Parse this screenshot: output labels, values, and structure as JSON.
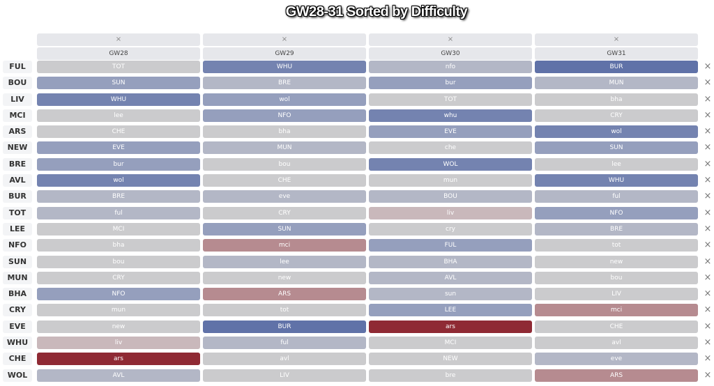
{
  "title": "GW28-31 Sorted by Difficulty",
  "header": {
    "remove_label": "×",
    "columns": [
      "GW28",
      "GW29",
      "GW30",
      "GW31"
    ]
  },
  "row_remove_label": "×",
  "colors": {
    "c0": "#cbcbcd",
    "c1": "#b3b7c6",
    "c2": "#959fbd",
    "c3": "#7483b0",
    "c4": "#6072a8",
    "p1": "#c9b8bb",
    "p2": "#b68b90",
    "p3": "#8f2a34"
  },
  "rows": [
    {
      "team": "FUL",
      "fixtures": [
        {
          "opp": "TOT",
          "c": "c0"
        },
        {
          "opp": "WHU",
          "c": "c3"
        },
        {
          "opp": "nfo",
          "c": "c1"
        },
        {
          "opp": "BUR",
          "c": "c4"
        }
      ]
    },
    {
      "team": "BOU",
      "fixtures": [
        {
          "opp": "SUN",
          "c": "c2"
        },
        {
          "opp": "BRE",
          "c": "c1"
        },
        {
          "opp": "bur",
          "c": "c2"
        },
        {
          "opp": "MUN",
          "c": "c1"
        }
      ]
    },
    {
      "team": "LIV",
      "fixtures": [
        {
          "opp": "WHU",
          "c": "c3"
        },
        {
          "opp": "wol",
          "c": "c2"
        },
        {
          "opp": "TOT",
          "c": "c0"
        },
        {
          "opp": "bha",
          "c": "c0"
        }
      ]
    },
    {
      "team": "MCI",
      "fixtures": [
        {
          "opp": "lee",
          "c": "c0"
        },
        {
          "opp": "NFO",
          "c": "c2"
        },
        {
          "opp": "whu",
          "c": "c3"
        },
        {
          "opp": "CRY",
          "c": "c0"
        }
      ]
    },
    {
      "team": "ARS",
      "fixtures": [
        {
          "opp": "CHE",
          "c": "c0"
        },
        {
          "opp": "bha",
          "c": "c0"
        },
        {
          "opp": "EVE",
          "c": "c2"
        },
        {
          "opp": "wol",
          "c": "c3"
        }
      ]
    },
    {
      "team": "NEW",
      "fixtures": [
        {
          "opp": "EVE",
          "c": "c2"
        },
        {
          "opp": "MUN",
          "c": "c1"
        },
        {
          "opp": "che",
          "c": "c0"
        },
        {
          "opp": "SUN",
          "c": "c2"
        }
      ]
    },
    {
      "team": "BRE",
      "fixtures": [
        {
          "opp": "bur",
          "c": "c2"
        },
        {
          "opp": "bou",
          "c": "c0"
        },
        {
          "opp": "WOL",
          "c": "c3"
        },
        {
          "opp": "lee",
          "c": "c0"
        }
      ]
    },
    {
      "team": "AVL",
      "fixtures": [
        {
          "opp": "wol",
          "c": "c3"
        },
        {
          "opp": "CHE",
          "c": "c0"
        },
        {
          "opp": "mun",
          "c": "c0"
        },
        {
          "opp": "WHU",
          "c": "c3"
        }
      ]
    },
    {
      "team": "BUR",
      "fixtures": [
        {
          "opp": "BRE",
          "c": "c1"
        },
        {
          "opp": "eve",
          "c": "c1"
        },
        {
          "opp": "BOU",
          "c": "c1"
        },
        {
          "opp": "ful",
          "c": "c1"
        }
      ]
    },
    {
      "team": "TOT",
      "fixtures": [
        {
          "opp": "ful",
          "c": "c1"
        },
        {
          "opp": "CRY",
          "c": "c0"
        },
        {
          "opp": "liv",
          "c": "p1"
        },
        {
          "opp": "NFO",
          "c": "c2"
        }
      ]
    },
    {
      "team": "LEE",
      "fixtures": [
        {
          "opp": "MCI",
          "c": "c0"
        },
        {
          "opp": "SUN",
          "c": "c2"
        },
        {
          "opp": "cry",
          "c": "c0"
        },
        {
          "opp": "BRE",
          "c": "c1"
        }
      ]
    },
    {
      "team": "NFO",
      "fixtures": [
        {
          "opp": "bha",
          "c": "c0"
        },
        {
          "opp": "mci",
          "c": "p2"
        },
        {
          "opp": "FUL",
          "c": "c2"
        },
        {
          "opp": "tot",
          "c": "c0"
        }
      ]
    },
    {
      "team": "SUN",
      "fixtures": [
        {
          "opp": "bou",
          "c": "c0"
        },
        {
          "opp": "lee",
          "c": "c1"
        },
        {
          "opp": "BHA",
          "c": "c1"
        },
        {
          "opp": "new",
          "c": "c0"
        }
      ]
    },
    {
      "team": "MUN",
      "fixtures": [
        {
          "opp": "CRY",
          "c": "c0"
        },
        {
          "opp": "new",
          "c": "c0"
        },
        {
          "opp": "AVL",
          "c": "c1"
        },
        {
          "opp": "bou",
          "c": "c0"
        }
      ]
    },
    {
      "team": "BHA",
      "fixtures": [
        {
          "opp": "NFO",
          "c": "c2"
        },
        {
          "opp": "ARS",
          "c": "p2"
        },
        {
          "opp": "sun",
          "c": "c1"
        },
        {
          "opp": "LIV",
          "c": "c0"
        }
      ]
    },
    {
      "team": "CRY",
      "fixtures": [
        {
          "opp": "mun",
          "c": "c0"
        },
        {
          "opp": "tot",
          "c": "c0"
        },
        {
          "opp": "LEE",
          "c": "c2"
        },
        {
          "opp": "mci",
          "c": "p2"
        }
      ]
    },
    {
      "team": "EVE",
      "fixtures": [
        {
          "opp": "new",
          "c": "c0"
        },
        {
          "opp": "BUR",
          "c": "c4"
        },
        {
          "opp": "ars",
          "c": "p3"
        },
        {
          "opp": "CHE",
          "c": "c0"
        }
      ]
    },
    {
      "team": "WHU",
      "fixtures": [
        {
          "opp": "liv",
          "c": "p1"
        },
        {
          "opp": "ful",
          "c": "c1"
        },
        {
          "opp": "MCI",
          "c": "c0"
        },
        {
          "opp": "avl",
          "c": "c0"
        }
      ]
    },
    {
      "team": "CHE",
      "fixtures": [
        {
          "opp": "ars",
          "c": "p3"
        },
        {
          "opp": "avl",
          "c": "c0"
        },
        {
          "opp": "NEW",
          "c": "c0"
        },
        {
          "opp": "eve",
          "c": "c1"
        }
      ]
    },
    {
      "team": "WOL",
      "fixtures": [
        {
          "opp": "AVL",
          "c": "c1"
        },
        {
          "opp": "LIV",
          "c": "c0"
        },
        {
          "opp": "bre",
          "c": "c0"
        },
        {
          "opp": "ARS",
          "c": "p2"
        }
      ]
    }
  ]
}
